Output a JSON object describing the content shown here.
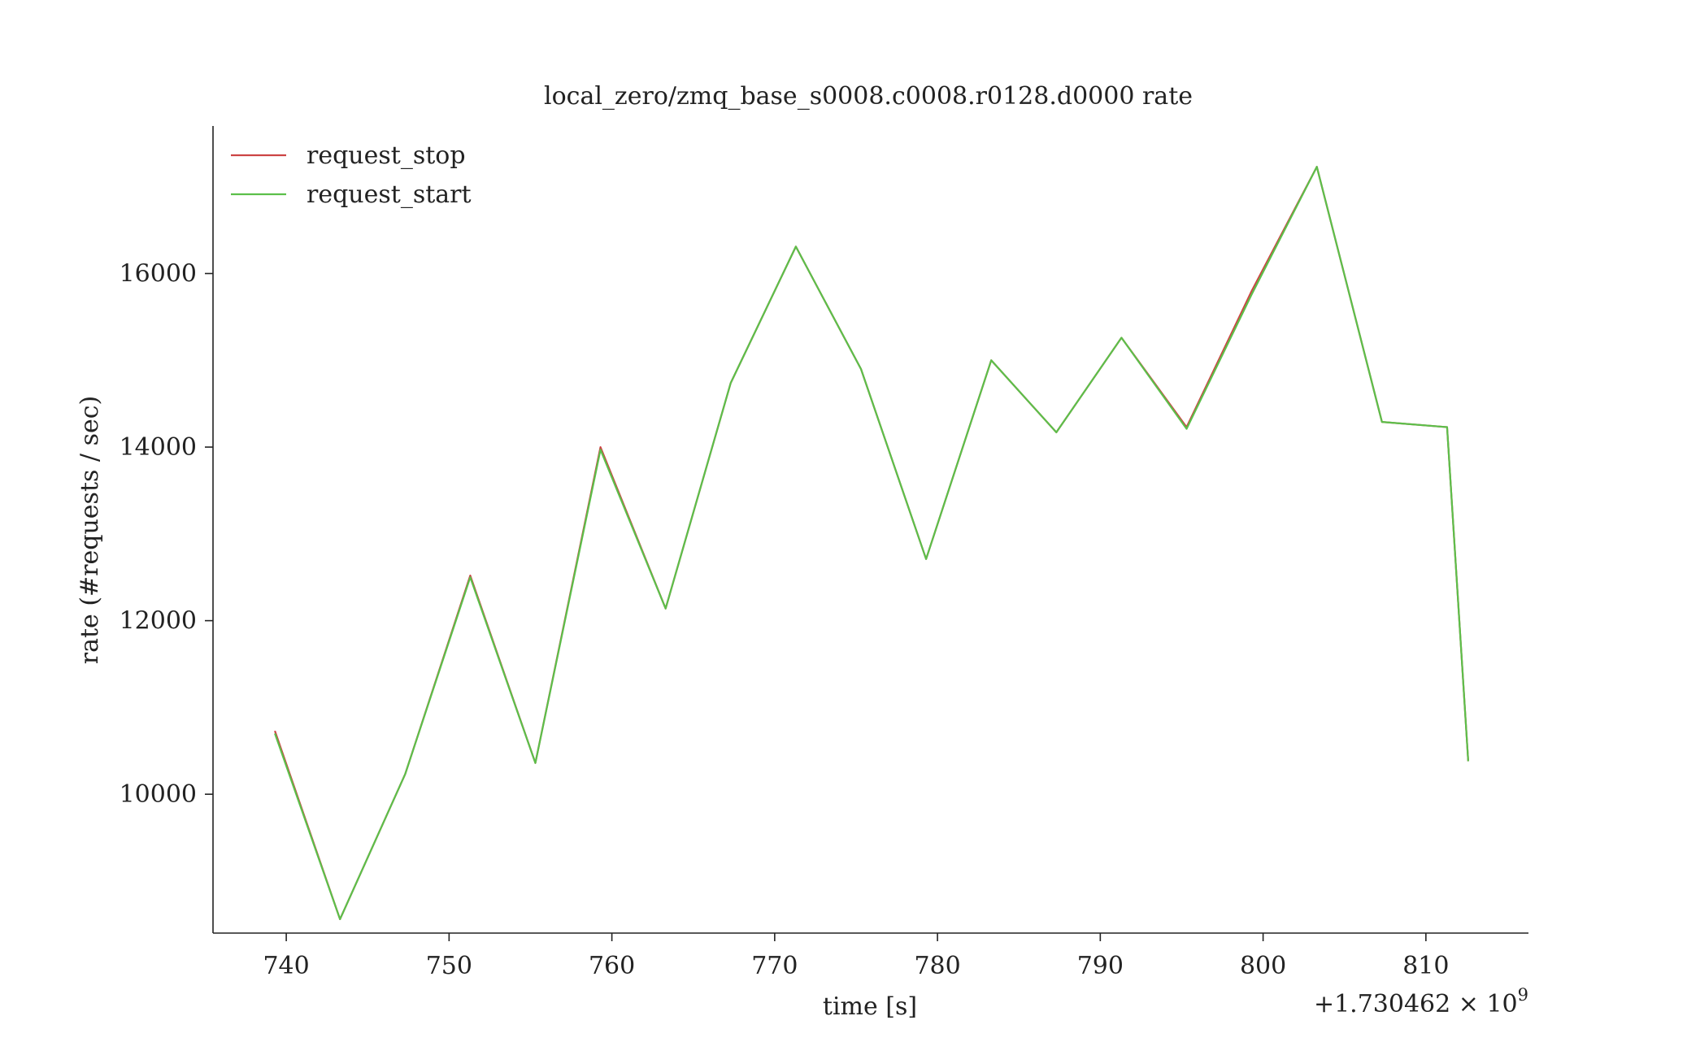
{
  "chart_data": {
    "type": "line",
    "title": "local_zero/zmq_base_s0008.c0008.r0128.d0000 rate",
    "xlabel": "time [s]",
    "ylabel": "rate (#requests / sec)",
    "x_offset_label": "+1.730462 × 10",
    "x_offset_exponent": "9",
    "xlim": [
      735.5,
      816.3
    ],
    "ylim": [
      8400,
      17700
    ],
    "x_ticks": [
      740,
      750,
      760,
      770,
      780,
      790,
      800,
      810
    ],
    "x_tick_labels": [
      "740",
      "750",
      "760",
      "770",
      "780",
      "790",
      "800",
      "810"
    ],
    "y_ticks": [
      10000,
      12000,
      14000,
      16000
    ],
    "y_tick_labels": [
      "10000",
      "12000",
      "14000",
      "16000"
    ],
    "grid": false,
    "legend": "top-left",
    "series": [
      {
        "name": "request_stop",
        "color": "#cc4444",
        "x": [
          739.3,
          743.3,
          747.3,
          751.3,
          755.3,
          759.3,
          763.3,
          767.3,
          771.3,
          775.3,
          779.3,
          783.3,
          787.3,
          791.3,
          795.3,
          799.3,
          803.3,
          807.3,
          811.3,
          812.6
        ],
        "y": [
          10730,
          8560,
          10230,
          12520,
          10360,
          14000,
          12140,
          14740,
          16310,
          14900,
          12710,
          15000,
          14170,
          15260,
          14230,
          15800,
          17230,
          14290,
          14230,
          10380
        ]
      },
      {
        "name": "request_start",
        "color": "#5cbf4a",
        "x": [
          739.3,
          743.3,
          747.3,
          751.3,
          755.3,
          759.3,
          763.3,
          767.3,
          771.3,
          775.3,
          779.3,
          783.3,
          787.3,
          791.3,
          795.3,
          799.3,
          803.3,
          807.3,
          811.3,
          812.6
        ],
        "y": [
          10700,
          8560,
          10230,
          12500,
          10360,
          13970,
          12140,
          14740,
          16310,
          14900,
          12710,
          15000,
          14170,
          15260,
          14210,
          15760,
          17230,
          14290,
          14230,
          10380
        ]
      }
    ]
  }
}
